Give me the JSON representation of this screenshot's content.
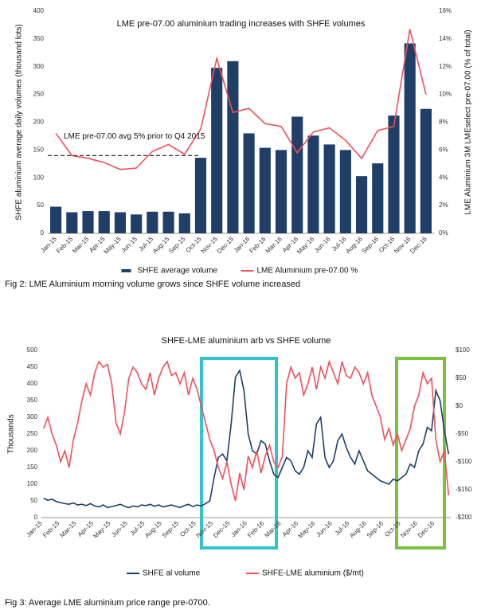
{
  "chart_data": [
    {
      "type": "bar",
      "title": "LME pre-07.00 aluminium trading increases with SHFE volumes",
      "y_label": "SHFE aluminium average daily volumes (thousand lots)",
      "y2_label": "LME Aluminium 3M LMEselect pre-07.00 (% of total)",
      "caption": "Fig 2: LME Aluminium morning volume grows since SHFE volume increased",
      "categories": [
        "Jan-15",
        "Feb-15",
        "Mar-15",
        "Apr-15",
        "May-15",
        "Jun-15",
        "Jul-15",
        "Aug-15",
        "Sep-15",
        "Oct-15",
        "Nov-15",
        "Dec-15",
        "Jan-16",
        "Feb-16",
        "Mar-16",
        "Apr-16",
        "May-16",
        "Jun-16",
        "Jul-16",
        "Aug-16",
        "Sep-16",
        "Oct-16",
        "Nov-16",
        "Dec-16"
      ],
      "series": [
        {
          "name": "SHFE average volume",
          "type": "bar",
          "color": "#1f3f66",
          "values": [
            48,
            38,
            40,
            40,
            38,
            34,
            39,
            39,
            36,
            136,
            298,
            310,
            180,
            154,
            150,
            210,
            176,
            160,
            150,
            103,
            126,
            212,
            342,
            224
          ]
        },
        {
          "name": "LME Aluminium pre-07.00 %",
          "type": "line",
          "axis": "y2",
          "color": "#f0505a",
          "values": [
            7.2,
            5.6,
            5.4,
            5.1,
            4.6,
            4.7,
            5.9,
            6.4,
            5.7,
            7.5,
            12.6,
            8.7,
            9.0,
            7.9,
            7.7,
            5.8,
            7.3,
            7.6,
            6.7,
            5.4,
            7.4,
            7.7,
            14.7,
            10.0
          ]
        }
      ],
      "reference_line": {
        "label": "LME pre-07.00 avg 5% prior to Q4 2015",
        "value": 140,
        "end": "Oct-15"
      },
      "ylim": [
        0,
        400
      ],
      "yticks": [
        0,
        50,
        100,
        150,
        200,
        250,
        300,
        350,
        400
      ],
      "y2lim": [
        0,
        16
      ],
      "y2ticks": [
        {
          "value": 0,
          "label": "0%"
        },
        {
          "value": 2,
          "label": "2%"
        },
        {
          "value": 4,
          "label": "4%"
        },
        {
          "value": 6,
          "label": "6%"
        },
        {
          "value": 8,
          "label": "8%"
        },
        {
          "value": 10,
          "label": "10%"
        },
        {
          "value": 12,
          "label": "12%"
        },
        {
          "value": 14,
          "label": "14%"
        },
        {
          "value": 16,
          "label": "16%"
        }
      ],
      "grid": false,
      "legend": "bottom"
    },
    {
      "type": "line",
      "title": "SHFE-LME aluminium arb vs SHFE volume",
      "y_label": "Thousands",
      "caption": "Fig 3: Average LME aluminium price range pre-0700.",
      "categories": [
        "Jan-15",
        null,
        null,
        null,
        "Feb-15",
        null,
        null,
        null,
        "Mar-15",
        null,
        null,
        null,
        "Apr-15",
        null,
        null,
        null,
        "May-15",
        null,
        null,
        null,
        "Jun-15",
        null,
        null,
        null,
        "Jul-15",
        null,
        null,
        null,
        "Aug-15",
        null,
        null,
        null,
        "Sep-15",
        null,
        null,
        null,
        "Oct-15",
        null,
        null,
        null,
        "Nov-15",
        null,
        null,
        null,
        "Dec-15",
        null,
        null,
        null,
        "Jan-16",
        null,
        null,
        null,
        "Feb-16",
        null,
        null,
        null,
        "Mar-16",
        null,
        null,
        null,
        "Apr-16",
        null,
        null,
        null,
        "May-16",
        null,
        null,
        null,
        "Jun-16",
        null,
        null,
        null,
        "Jul-16",
        null,
        null,
        null,
        "Aug-16",
        null,
        null,
        null,
        "Sep-16",
        null,
        null,
        null,
        "Oct-16",
        null,
        null,
        null,
        "Nov-16",
        null,
        null,
        null,
        "Dec-16",
        null,
        null,
        null
      ],
      "series": [
        {
          "name": "SHFE al volume",
          "type": "line",
          "color": "#1f3f66",
          "values": [
            58,
            52,
            55,
            48,
            45,
            42,
            40,
            44,
            38,
            40,
            36,
            42,
            35,
            32,
            38,
            30,
            33,
            36,
            40,
            34,
            30,
            35,
            32,
            38,
            36,
            40,
            34,
            38,
            32,
            35,
            38,
            34,
            30,
            36,
            40,
            33,
            38,
            35,
            42,
            50,
            120,
            180,
            190,
            170,
            280,
            420,
            440,
            380,
            250,
            200,
            190,
            230,
            220,
            170,
            130,
            120,
            150,
            180,
            170,
            140,
            130,
            150,
            200,
            180,
            280,
            300,
            180,
            150,
            170,
            230,
            250,
            210,
            180,
            160,
            200,
            170,
            140,
            130,
            120,
            110,
            105,
            100,
            115,
            110,
            120,
            130,
            160,
            150,
            200,
            220,
            270,
            260,
            380,
            350,
            260,
            190
          ]
        },
        {
          "name": "SHFE-LME aluminium ($/mt)",
          "type": "line",
          "axis": "y2",
          "color": "#f0505a",
          "values": [
            -40,
            -20,
            -50,
            -70,
            -100,
            -80,
            -110,
            -60,
            -30,
            10,
            40,
            20,
            60,
            80,
            70,
            75,
            40,
            -30,
            -50,
            -10,
            50,
            70,
            60,
            40,
            30,
            60,
            20,
            50,
            70,
            80,
            55,
            60,
            40,
            60,
            20,
            50,
            30,
            0,
            -30,
            -60,
            -80,
            -110,
            -130,
            -100,
            -140,
            -170,
            -120,
            -150,
            -90,
            -110,
            -80,
            -120,
            -90,
            -70,
            -100,
            -110,
            -90,
            40,
            70,
            50,
            60,
            20,
            40,
            70,
            30,
            70,
            50,
            80,
            60,
            40,
            80,
            55,
            50,
            70,
            60,
            40,
            60,
            20,
            0,
            -20,
            -60,
            -40,
            -70,
            -50,
            -80,
            -60,
            -40,
            0,
            20,
            60,
            40,
            50,
            -60,
            -100,
            -80,
            -160
          ]
        }
      ],
      "ylim": [
        0,
        500
      ],
      "yticks": [
        0,
        50,
        100,
        150,
        200,
        250,
        300,
        350,
        400,
        450,
        500
      ],
      "y2lim": [
        -200,
        100
      ],
      "y2ticks": [
        {
          "value": -200,
          "label": "-$200"
        },
        {
          "value": -150,
          "label": "-$150"
        },
        {
          "value": -100,
          "label": "-$100"
        },
        {
          "value": -50,
          "label": "-$50"
        },
        {
          "value": 0,
          "label": "$0"
        },
        {
          "value": 50,
          "label": "$50"
        },
        {
          "value": 100,
          "label": "$100"
        }
      ],
      "grid": false,
      "legend": "bottom"
    }
  ]
}
